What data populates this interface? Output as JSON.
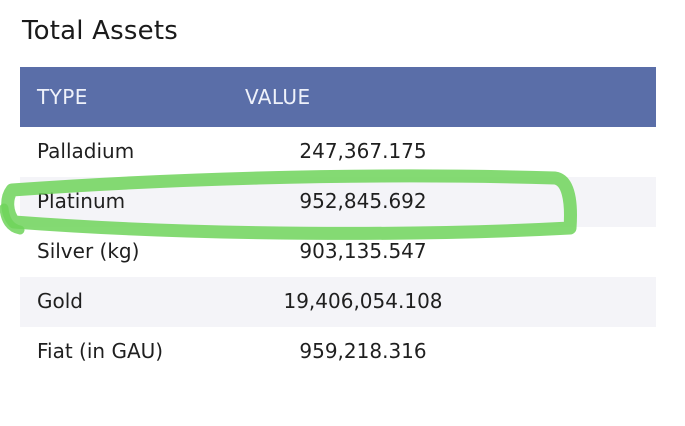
{
  "title": "Total Assets",
  "table": {
    "headers": {
      "type": "TYPE",
      "value": "VALUE"
    },
    "rows": [
      {
        "type": "Palladium",
        "value": "247,367.175"
      },
      {
        "type": "Platinum",
        "value": "952,845.692"
      },
      {
        "type": "Silver (kg)",
        "value": "903,135.547"
      },
      {
        "type": "Gold",
        "value": "19,406,054.108"
      },
      {
        "type": "Fiat (in GAU)",
        "value": "959,218.316"
      }
    ]
  },
  "colors": {
    "header_bg": "#5a6ea8",
    "header_text": "#eef1fa",
    "alt_row_bg": "#f4f4f8",
    "highlight_stroke": "#6fd35a"
  },
  "annotation": {
    "highlighted_row": "Platinum"
  }
}
